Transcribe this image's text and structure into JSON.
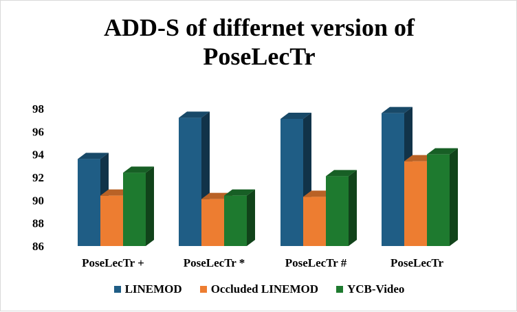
{
  "chart_data": {
    "type": "bar",
    "title_line1": "ADD-S of differnet version of",
    "title_line2": "PoseLecTr",
    "categories": [
      "PoseLecTr +",
      "PoseLecTr *",
      "PoseLecTr #",
      "PoseLecTr"
    ],
    "series": [
      {
        "name": "LINEMOD",
        "values": [
          93.6,
          97.2,
          97.1,
          97.6
        ],
        "color": "#1f5d85"
      },
      {
        "name": "Occluded LINEMOD",
        "values": [
          90.4,
          90.1,
          90.3,
          93.4
        ],
        "color": "#ed7d31"
      },
      {
        "name": "YCB-Video",
        "values": [
          92.4,
          90.4,
          92.1,
          94.0
        ],
        "color": "#1e7a2f"
      }
    ],
    "yticks": [
      "86",
      "88",
      "90",
      "92",
      "94",
      "96",
      "98"
    ],
    "ylim": [
      86,
      98
    ],
    "grid": false,
    "legend_position": "bottom",
    "three_d": true
  }
}
